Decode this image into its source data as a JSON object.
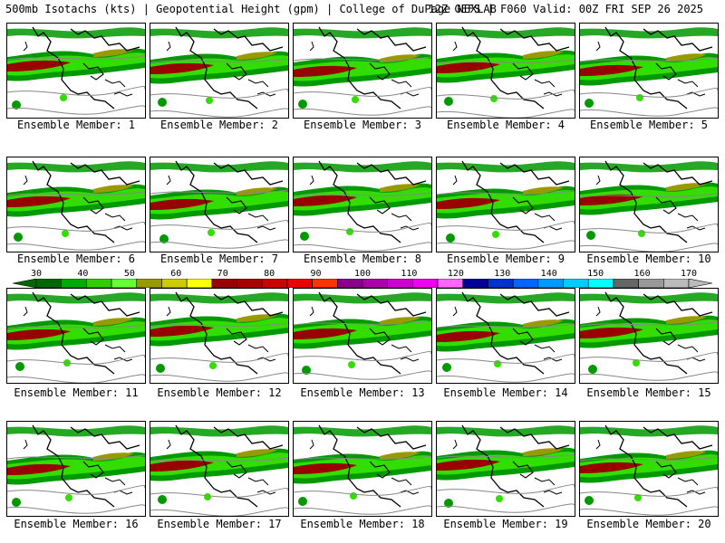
{
  "header": {
    "left": "500mb Isotachs (kts) | Geopotential Height (gpm) | College of DuPage NEXLAB",
    "right": "12Z GEFS | F060 Valid: 00Z FRI SEP 26 2025"
  },
  "caption_prefix": "Ensemble Member:",
  "members": [
    "1",
    "2",
    "3",
    "4",
    "5",
    "6",
    "7",
    "8",
    "9",
    "10",
    "11",
    "12",
    "13",
    "14",
    "15",
    "16",
    "17",
    "18",
    "19",
    "20"
  ],
  "colorbar": {
    "labels": [
      "30",
      "40",
      "50",
      "60",
      "70",
      "80",
      "90",
      "100",
      "110",
      "120",
      "130",
      "140",
      "150",
      "160",
      "170"
    ],
    "colors": [
      "#006600",
      "#00aa00",
      "#33cc00",
      "#66ff33",
      "#999900",
      "#cccc00",
      "#ffff00",
      "#990000",
      "#aa0000",
      "#cc0000",
      "#ee0000",
      "#ff3300",
      "#8b008b",
      "#aa00aa",
      "#cc00cc",
      "#ee00ee",
      "#ff66ff",
      "#000099",
      "#0033cc",
      "#0066ff",
      "#0099ff",
      "#00ccff",
      "#00ffff",
      "#666666",
      "#999999",
      "#bbbbbb"
    ]
  },
  "map": {
    "isotach_colors": {
      "low": "#009900",
      "mid": "#33dd00",
      "high": "#999900",
      "jet": "#990000",
      "peak": "#cc0000"
    },
    "contour_color": "#888888",
    "coast_color": "#000000"
  }
}
